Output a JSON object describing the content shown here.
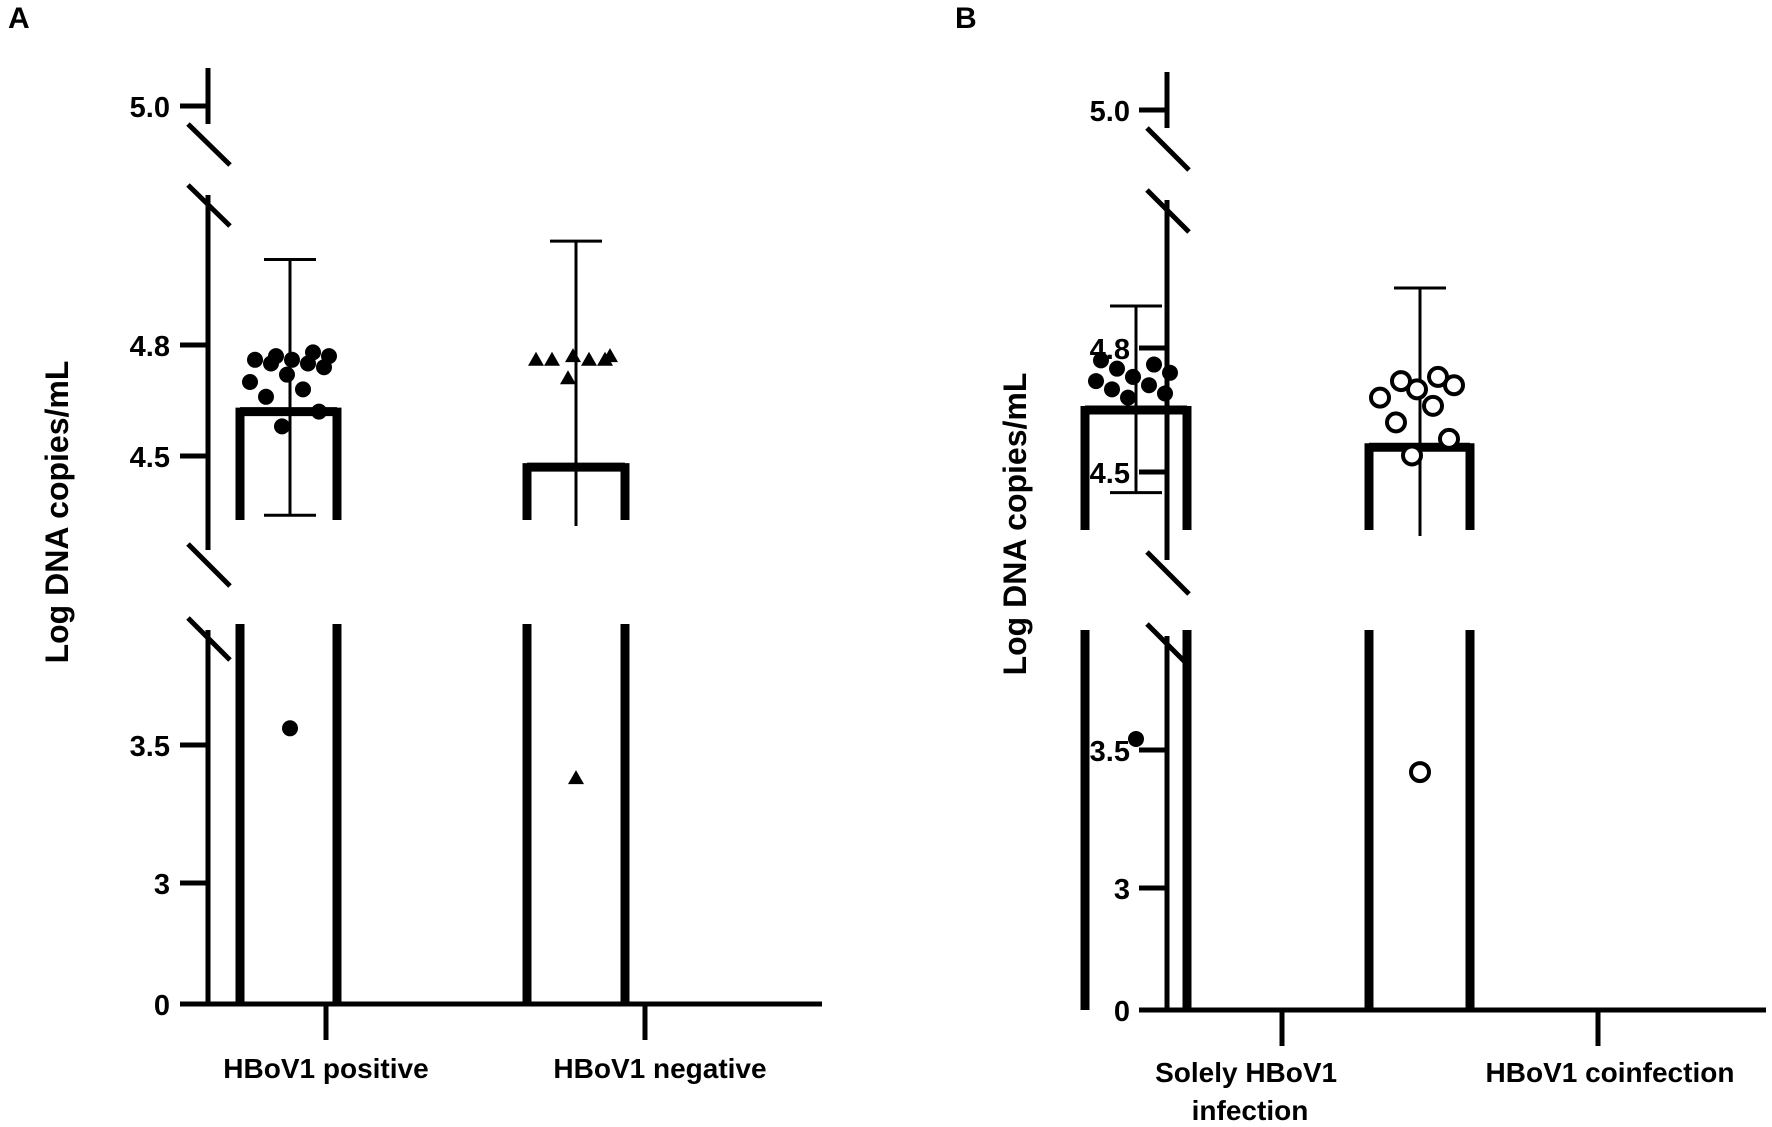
{
  "panels": {
    "A": "A",
    "B": "B"
  },
  "chart_data": [
    {
      "type": "bar",
      "panel": "A",
      "ylabel": "Log DNA copies/mL",
      "yticks": [
        "0",
        "3",
        "3.5",
        "4.5",
        "4.8",
        "5.0"
      ],
      "axis_breaks": [
        "3.5–4.5",
        "4.8–5.0"
      ],
      "categories": [
        "HBoV1 positive",
        "HBoV1 negative"
      ],
      "values": [
        4.62,
        4.47
      ],
      "error_upper": [
        4.94,
        4.97
      ],
      "error_lower": [
        4.34,
        3.82
      ],
      "points": [
        [
          3.55,
          4.58,
          4.62,
          4.66,
          4.68,
          4.7,
          4.72,
          4.74,
          4.75,
          4.75,
          4.76,
          4.76,
          4.77,
          4.77,
          4.78
        ],
        [
          3.38,
          4.71,
          4.76,
          4.76,
          4.76,
          4.76,
          4.77,
          4.77
        ]
      ],
      "marker": [
        "filled-circle",
        "filled-triangle"
      ]
    },
    {
      "type": "bar",
      "panel": "B",
      "ylabel": "Log DNA copies/mL",
      "yticks": [
        "0",
        "3",
        "3.5",
        "4.5",
        "4.8",
        "5.0"
      ],
      "axis_breaks": [
        "3.5–4.5",
        "4.8–5.0"
      ],
      "categories": [
        "Solely HBoV1 infection",
        "HBoV1 coinfection"
      ],
      "values": [
        4.65,
        4.56
      ],
      "error_upper": [
        4.87,
        4.9
      ],
      "error_lower": [
        4.45,
        3.82
      ],
      "points": [
        [
          3.53,
          4.68,
          4.69,
          4.7,
          4.71,
          4.72,
          4.73,
          4.74,
          4.75,
          4.76,
          4.77
        ],
        [
          3.42,
          4.54,
          4.58,
          4.62,
          4.66,
          4.68,
          4.7,
          4.71,
          4.72,
          4.73
        ]
      ],
      "marker": [
        "filled-circle",
        "open-circle"
      ]
    }
  ]
}
